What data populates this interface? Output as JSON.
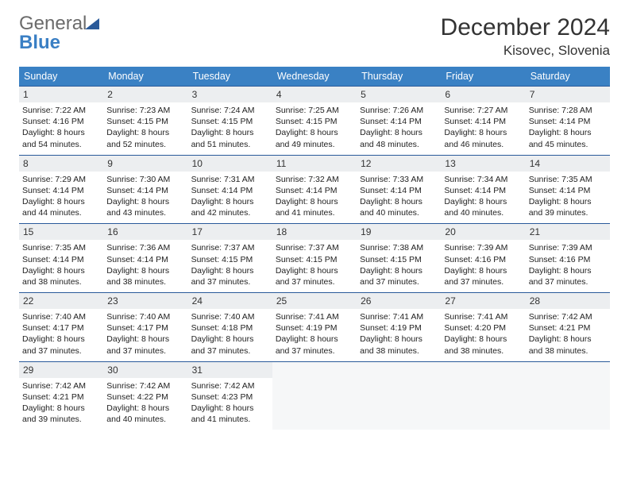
{
  "brand": {
    "part1": "General",
    "part2": "Blue"
  },
  "title": "December 2024",
  "location": "Kisovec, Slovenia",
  "colors": {
    "header_bg": "#3a81c4",
    "border": "#2a5a9a",
    "daynum_bg": "#eceef0",
    "logo_gray": "#6b6b6b",
    "logo_blue": "#3a7fc4"
  },
  "weekdays": [
    "Sunday",
    "Monday",
    "Tuesday",
    "Wednesday",
    "Thursday",
    "Friday",
    "Saturday"
  ],
  "weeks": [
    [
      {
        "n": "1",
        "sr": "7:22 AM",
        "ss": "4:16 PM",
        "dl": "8 hours and 54 minutes."
      },
      {
        "n": "2",
        "sr": "7:23 AM",
        "ss": "4:15 PM",
        "dl": "8 hours and 52 minutes."
      },
      {
        "n": "3",
        "sr": "7:24 AM",
        "ss": "4:15 PM",
        "dl": "8 hours and 51 minutes."
      },
      {
        "n": "4",
        "sr": "7:25 AM",
        "ss": "4:15 PM",
        "dl": "8 hours and 49 minutes."
      },
      {
        "n": "5",
        "sr": "7:26 AM",
        "ss": "4:14 PM",
        "dl": "8 hours and 48 minutes."
      },
      {
        "n": "6",
        "sr": "7:27 AM",
        "ss": "4:14 PM",
        "dl": "8 hours and 46 minutes."
      },
      {
        "n": "7",
        "sr": "7:28 AM",
        "ss": "4:14 PM",
        "dl": "8 hours and 45 minutes."
      }
    ],
    [
      {
        "n": "8",
        "sr": "7:29 AM",
        "ss": "4:14 PM",
        "dl": "8 hours and 44 minutes."
      },
      {
        "n": "9",
        "sr": "7:30 AM",
        "ss": "4:14 PM",
        "dl": "8 hours and 43 minutes."
      },
      {
        "n": "10",
        "sr": "7:31 AM",
        "ss": "4:14 PM",
        "dl": "8 hours and 42 minutes."
      },
      {
        "n": "11",
        "sr": "7:32 AM",
        "ss": "4:14 PM",
        "dl": "8 hours and 41 minutes."
      },
      {
        "n": "12",
        "sr": "7:33 AM",
        "ss": "4:14 PM",
        "dl": "8 hours and 40 minutes."
      },
      {
        "n": "13",
        "sr": "7:34 AM",
        "ss": "4:14 PM",
        "dl": "8 hours and 40 minutes."
      },
      {
        "n": "14",
        "sr": "7:35 AM",
        "ss": "4:14 PM",
        "dl": "8 hours and 39 minutes."
      }
    ],
    [
      {
        "n": "15",
        "sr": "7:35 AM",
        "ss": "4:14 PM",
        "dl": "8 hours and 38 minutes."
      },
      {
        "n": "16",
        "sr": "7:36 AM",
        "ss": "4:14 PM",
        "dl": "8 hours and 38 minutes."
      },
      {
        "n": "17",
        "sr": "7:37 AM",
        "ss": "4:15 PM",
        "dl": "8 hours and 37 minutes."
      },
      {
        "n": "18",
        "sr": "7:37 AM",
        "ss": "4:15 PM",
        "dl": "8 hours and 37 minutes."
      },
      {
        "n": "19",
        "sr": "7:38 AM",
        "ss": "4:15 PM",
        "dl": "8 hours and 37 minutes."
      },
      {
        "n": "20",
        "sr": "7:39 AM",
        "ss": "4:16 PM",
        "dl": "8 hours and 37 minutes."
      },
      {
        "n": "21",
        "sr": "7:39 AM",
        "ss": "4:16 PM",
        "dl": "8 hours and 37 minutes."
      }
    ],
    [
      {
        "n": "22",
        "sr": "7:40 AM",
        "ss": "4:17 PM",
        "dl": "8 hours and 37 minutes."
      },
      {
        "n": "23",
        "sr": "7:40 AM",
        "ss": "4:17 PM",
        "dl": "8 hours and 37 minutes."
      },
      {
        "n": "24",
        "sr": "7:40 AM",
        "ss": "4:18 PM",
        "dl": "8 hours and 37 minutes."
      },
      {
        "n": "25",
        "sr": "7:41 AM",
        "ss": "4:19 PM",
        "dl": "8 hours and 37 minutes."
      },
      {
        "n": "26",
        "sr": "7:41 AM",
        "ss": "4:19 PM",
        "dl": "8 hours and 38 minutes."
      },
      {
        "n": "27",
        "sr": "7:41 AM",
        "ss": "4:20 PM",
        "dl": "8 hours and 38 minutes."
      },
      {
        "n": "28",
        "sr": "7:42 AM",
        "ss": "4:21 PM",
        "dl": "8 hours and 38 minutes."
      }
    ],
    [
      {
        "n": "29",
        "sr": "7:42 AM",
        "ss": "4:21 PM",
        "dl": "8 hours and 39 minutes."
      },
      {
        "n": "30",
        "sr": "7:42 AM",
        "ss": "4:22 PM",
        "dl": "8 hours and 40 minutes."
      },
      {
        "n": "31",
        "sr": "7:42 AM",
        "ss": "4:23 PM",
        "dl": "8 hours and 41 minutes."
      },
      null,
      null,
      null,
      null
    ]
  ],
  "labels": {
    "sunrise": "Sunrise:",
    "sunset": "Sunset:",
    "daylight": "Daylight:"
  }
}
